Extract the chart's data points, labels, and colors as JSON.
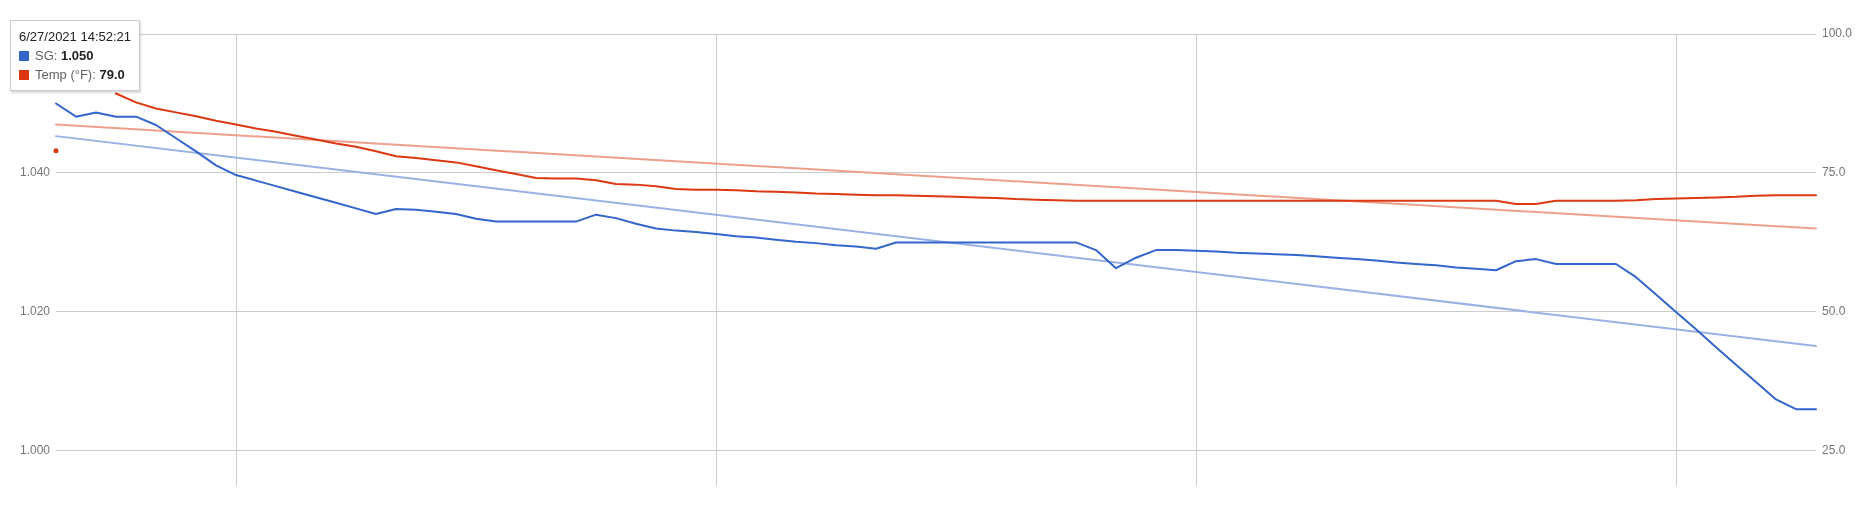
{
  "chart_data": {
    "type": "line",
    "categories": [
      null,
      null,
      null,
      null,
      null,
      null,
      null,
      null,
      null,
      null,
      null,
      null,
      null,
      null,
      null,
      null,
      null,
      null,
      null,
      null,
      null,
      null,
      null,
      null,
      null,
      null,
      null,
      null,
      null,
      null,
      null,
      null,
      null,
      null,
      null,
      null,
      null,
      null,
      null,
      null,
      null,
      null,
      null,
      null,
      null,
      null,
      null,
      null,
      null,
      null,
      null,
      null,
      null,
      null,
      null,
      null,
      null,
      null,
      null,
      null,
      null,
      null,
      null,
      null,
      null,
      null,
      null,
      null,
      null,
      null,
      null,
      null,
      null,
      null,
      null,
      null,
      null,
      null,
      null,
      null,
      null,
      null,
      null,
      null,
      null,
      null,
      null,
      null,
      null
    ],
    "series": [
      {
        "color": "#3366cc",
        "values": [
          1.05,
          1.0481,
          1.0487,
          1.0481,
          1.0481,
          1.0469,
          1.045,
          1.0431,
          1.0411,
          1.0397,
          1.0389,
          1.0381,
          1.0373,
          1.0365,
          1.0357,
          1.0349,
          1.0341,
          1.0348,
          1.0347,
          1.0344,
          1.0341,
          1.0334,
          1.033,
          1.033,
          1.033,
          1.033,
          1.033,
          1.034,
          1.0335,
          1.0327,
          1.032,
          1.0317,
          1.0315,
          1.0312,
          1.0309,
          1.0307,
          1.0304,
          1.0301,
          1.0299,
          1.0296,
          1.0294,
          1.0291,
          1.03,
          1.03,
          1.03,
          1.03,
          1.03,
          1.03,
          1.03,
          1.03,
          1.03,
          1.03,
          1.0289,
          1.0263,
          1.0278,
          1.0289,
          1.0289,
          1.0288,
          1.0287,
          1.0285,
          1.0284,
          1.0283,
          1.0282,
          1.028,
          1.0278,
          1.0276,
          1.0274,
          1.0271,
          1.0269,
          1.0267,
          1.0264,
          1.0262,
          1.026,
          1.0273,
          1.0276,
          1.0269,
          1.0269,
          1.0269,
          1.0269,
          1.025,
          1.0225,
          1.02,
          1.0175,
          1.0149,
          1.0124,
          1.0099,
          1.0074,
          1.006,
          1.006
        ]
      },
      {
        "color": "#dc3912",
        "axis": "y2",
        "values": [
          79.0,
          null,
          null,
          89.3,
          87.7,
          86.6,
          85.9,
          85.2,
          84.4,
          83.7,
          83.0,
          82.4,
          81.7,
          81.0,
          80.3,
          79.7,
          78.9,
          78.0,
          77.7,
          77.3,
          76.9,
          76.2,
          75.5,
          74.8,
          74.1,
          74.0,
          74.0,
          73.7,
          73.0,
          72.9,
          72.6,
          72.1,
          72.0,
          72.0,
          71.9,
          71.7,
          71.6,
          71.5,
          71.3,
          71.2,
          71.1,
          71.0,
          71.0,
          70.9,
          70.8,
          70.7,
          70.6,
          70.5,
          70.3,
          70.2,
          70.1,
          70.0,
          70.0,
          70.0,
          70.0,
          70.0,
          70.0,
          70.0,
          70.0,
          70.0,
          70.0,
          70.0,
          70.0,
          70.0,
          70.0,
          70.0,
          70.0,
          70.0,
          70.0,
          70.0,
          70.0,
          70.0,
          70.0,
          69.4,
          69.4,
          70.0,
          70.0,
          70.0,
          70.0,
          70.1,
          70.3,
          70.4,
          70.5,
          70.6,
          70.7,
          70.9,
          71.0,
          71.0,
          71.0
        ]
      },
      {
        "color": "#99b2e5",
        "values": [
          1.0453,
          null,
          null,
          null,
          null,
          null,
          null,
          null,
          null,
          null,
          null,
          null,
          null,
          null,
          null,
          null,
          null,
          null,
          null,
          null,
          null,
          null,
          null,
          null,
          null,
          null,
          null,
          null,
          null,
          null,
          null,
          null,
          null,
          null,
          null,
          null,
          null,
          null,
          null,
          null,
          null,
          null,
          null,
          null,
          null,
          null,
          null,
          null,
          null,
          null,
          null,
          null,
          null,
          null,
          null,
          null,
          null,
          null,
          null,
          null,
          null,
          null,
          null,
          null,
          null,
          null,
          null,
          null,
          null,
          null,
          null,
          null,
          null,
          null,
          null,
          null,
          null,
          null,
          null,
          null,
          null,
          null,
          null,
          null,
          null,
          null,
          null,
          null,
          1.0151
        ]
      },
      {
        "color": "#ee9f8c",
        "axis": "y2",
        "values": [
          83.7,
          null,
          null,
          null,
          null,
          null,
          null,
          null,
          null,
          null,
          null,
          null,
          null,
          null,
          null,
          null,
          null,
          null,
          null,
          null,
          null,
          null,
          null,
          null,
          null,
          null,
          null,
          null,
          null,
          null,
          null,
          null,
          null,
          null,
          null,
          null,
          null,
          null,
          null,
          null,
          null,
          null,
          null,
          null,
          null,
          null,
          null,
          null,
          null,
          null,
          null,
          null,
          null,
          null,
          null,
          null,
          null,
          null,
          null,
          null,
          null,
          null,
          null,
          null,
          null,
          null,
          null,
          null,
          null,
          null,
          null,
          null,
          null,
          null,
          null,
          null,
          null,
          null,
          null,
          null,
          null,
          null,
          null,
          null,
          null,
          null,
          null,
          null,
          65.0
        ]
      }
    ],
    "annotations": [
      "6/27/2021 14:52:21",
      "SG: 1.050",
      "Temp (°F): 79.0"
    ],
    "ylim": [
      0.995,
      1.06
    ],
    "yticks": [
      {
        "value": 1.0,
        "label": "1.000"
      },
      {
        "value": 1.02,
        "label": "1.020"
      },
      {
        "value": 1.04,
        "label": "1.040"
      },
      {
        "value": 1.06,
        "label": null
      }
    ],
    "y2lim": [
      18.75,
      100
    ],
    "y2ticks": [
      {
        "value": 25,
        "label": "25.0"
      },
      {
        "value": 50,
        "label": "50.0"
      },
      {
        "value": 75,
        "label": "75.0"
      },
      {
        "value": 100,
        "label": "100.0"
      }
    ],
    "grid": true,
    "marker": "none"
  }
}
